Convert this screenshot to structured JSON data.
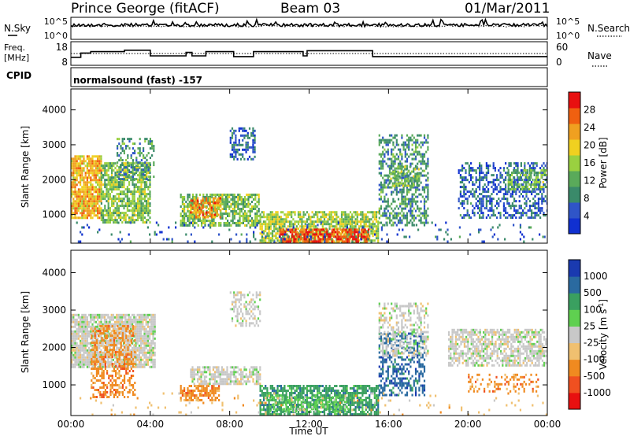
{
  "header": {
    "station": "Prince George (fitACF)",
    "beam": "Beam 03",
    "date": "01/Mar/2011"
  },
  "colors": {
    "power": [
      "#1030d0",
      "#2f55c8",
      "#3a8a6a",
      "#5aaa5a",
      "#9ad040",
      "#f0d020",
      "#f0a020",
      "#f06010",
      "#e81010"
    ],
    "velocity": [
      "#e81010",
      "#f05020",
      "#f08a20",
      "#f0c070",
      "#c8c8c8",
      "#5fd050",
      "#3aa060",
      "#2a6aa0",
      "#1a3ab0"
    ]
  },
  "chart_data": [
    {
      "type": "line",
      "name": "status-top",
      "left_label": "N.Sky",
      "right_label": "N.Search",
      "left_ticks": [
        "10^5",
        "10^0"
      ],
      "right_ticks": [
        "10^5",
        "10^0"
      ],
      "x_range_hours": [
        0,
        24
      ],
      "sky_level": 0.65,
      "search_level": 0.6
    },
    {
      "type": "line",
      "name": "status-freq",
      "left_label": "Freq.",
      "left_unit": "[MHz]",
      "right_label": "Nave",
      "left_ticks": [
        "18",
        "8"
      ],
      "right_ticks": [
        "60",
        "0"
      ],
      "ylim": [
        8,
        18
      ],
      "freq_steps": [
        [
          0,
          11.4
        ],
        [
          0.5,
          13.2
        ],
        [
          1.0,
          13.8
        ],
        [
          2.7,
          14.4
        ],
        [
          4.0,
          12.0
        ],
        [
          5.8,
          13.5
        ],
        [
          6.1,
          12.0
        ],
        [
          6.8,
          13.8
        ],
        [
          8.2,
          11.7
        ],
        [
          9.2,
          13.8
        ],
        [
          11.7,
          12.0
        ],
        [
          11.9,
          14.2
        ],
        [
          15.2,
          11.7
        ],
        [
          24,
          11.7
        ]
      ],
      "nave_level": 13.0
    },
    {
      "type": "heatmap",
      "name": "power-panel",
      "cpid_label": "CPID",
      "cpid_text": "normalsound (fast) -157",
      "ylabel": "Slant Range [km]",
      "yticks": [
        1000,
        2000,
        3000,
        4000
      ],
      "ylim": [
        180,
        4600
      ],
      "xlim": [
        0,
        24
      ],
      "colorbar": {
        "label": "Power [dB]",
        "ticks": [
          "4",
          "8",
          "12",
          "16",
          "20",
          "24",
          "28"
        ],
        "range": [
          0,
          32
        ]
      },
      "features": [
        {
          "t0": 0.0,
          "t1": 1.5,
          "r0": 900,
          "r1": 2700,
          "lvl": 22,
          "dens": 0.85
        },
        {
          "t0": 1.5,
          "t1": 4.0,
          "r0": 800,
          "r1": 2500,
          "lvl": 14,
          "dens": 0.75
        },
        {
          "t0": 2.3,
          "t1": 4.2,
          "r0": 2000,
          "r1": 3200,
          "lvl": 10,
          "dens": 0.4
        },
        {
          "t0": 5.5,
          "t1": 9.5,
          "r0": 700,
          "r1": 1600,
          "lvl": 14,
          "dens": 0.7
        },
        {
          "t0": 6.0,
          "t1": 7.5,
          "r0": 900,
          "r1": 1500,
          "lvl": 24,
          "dens": 0.6
        },
        {
          "t0": 8.0,
          "t1": 9.3,
          "r0": 2600,
          "r1": 3500,
          "lvl": 6,
          "dens": 0.5
        },
        {
          "t0": 9.5,
          "t1": 15.5,
          "r0": 200,
          "r1": 1100,
          "lvl": 16,
          "dens": 0.7
        },
        {
          "t0": 10.5,
          "t1": 15.0,
          "r0": 250,
          "r1": 600,
          "lvl": 28,
          "dens": 0.75
        },
        {
          "t0": 15.5,
          "t1": 18.0,
          "r0": 700,
          "r1": 3300,
          "lvl": 10,
          "dens": 0.5
        },
        {
          "t0": 16.0,
          "t1": 17.5,
          "r0": 1800,
          "r1": 2400,
          "lvl": 14,
          "dens": 0.6
        },
        {
          "t0": 19.5,
          "t1": 24.0,
          "r0": 900,
          "r1": 2500,
          "lvl": 6,
          "dens": 0.45
        },
        {
          "t0": 22.0,
          "t1": 24.0,
          "r0": 1700,
          "r1": 2300,
          "lvl": 13,
          "dens": 0.6
        },
        {
          "t0": 0.0,
          "t1": 24.0,
          "r0": 200,
          "r1": 800,
          "lvl": 6,
          "dens": 0.06
        }
      ]
    },
    {
      "type": "heatmap",
      "name": "velocity-panel",
      "ylabel": "Slant Range [km]",
      "yticks": [
        1000,
        2000,
        3000,
        4000
      ],
      "ylim": [
        180,
        4600
      ],
      "xlim": [
        0,
        24
      ],
      "xlabel": "Time UT",
      "xticks": [
        "00:00",
        "04:00",
        "08:00",
        "12:00",
        "16:00",
        "20:00",
        "00:00"
      ],
      "xtick_hours": [
        0,
        4,
        8,
        12,
        16,
        20,
        24
      ],
      "colorbar": {
        "label": "Velocity [m s",
        "label_sup": "-1",
        "label_end": "]",
        "ticks": [
          "-1000",
          "-500",
          "-100",
          "-25",
          "25",
          "100",
          "500",
          "1000"
        ]
      },
      "features": [
        {
          "t0": 0.0,
          "t1": 4.2,
          "r0": 1500,
          "r1": 2900,
          "cls": 4,
          "dens": 0.85
        },
        {
          "t0": 1.0,
          "t1": 3.2,
          "r0": 700,
          "r1": 2600,
          "cls": 2,
          "dens": 0.45
        },
        {
          "t0": 5.5,
          "t1": 7.5,
          "r0": 600,
          "r1": 1000,
          "cls": 2,
          "dens": 0.7
        },
        {
          "t0": 6.0,
          "t1": 9.5,
          "r0": 1000,
          "r1": 1500,
          "cls": 4,
          "dens": 0.7
        },
        {
          "t0": 8.0,
          "t1": 9.5,
          "r0": 2600,
          "r1": 3500,
          "cls": 4,
          "dens": 0.4
        },
        {
          "t0": 9.5,
          "t1": 15.5,
          "r0": 200,
          "r1": 1000,
          "cls": 6,
          "dens": 0.7
        },
        {
          "t0": 10.0,
          "t1": 14.0,
          "r0": 300,
          "r1": 700,
          "cls": 5,
          "dens": 0.4
        },
        {
          "t0": 15.5,
          "t1": 17.8,
          "r0": 700,
          "r1": 2400,
          "cls": 7,
          "dens": 0.45
        },
        {
          "t0": 15.5,
          "t1": 18.0,
          "r0": 1800,
          "r1": 3200,
          "cls": 4,
          "dens": 0.45
        },
        {
          "t0": 19.0,
          "t1": 24.0,
          "r0": 1500,
          "r1": 2500,
          "cls": 4,
          "dens": 0.65
        },
        {
          "t0": 20.0,
          "t1": 23.5,
          "r0": 800,
          "r1": 1300,
          "cls": 2,
          "dens": 0.3
        },
        {
          "t0": 0.0,
          "t1": 24.0,
          "r0": 200,
          "r1": 800,
          "cls": 3,
          "dens": 0.05
        }
      ]
    }
  ]
}
